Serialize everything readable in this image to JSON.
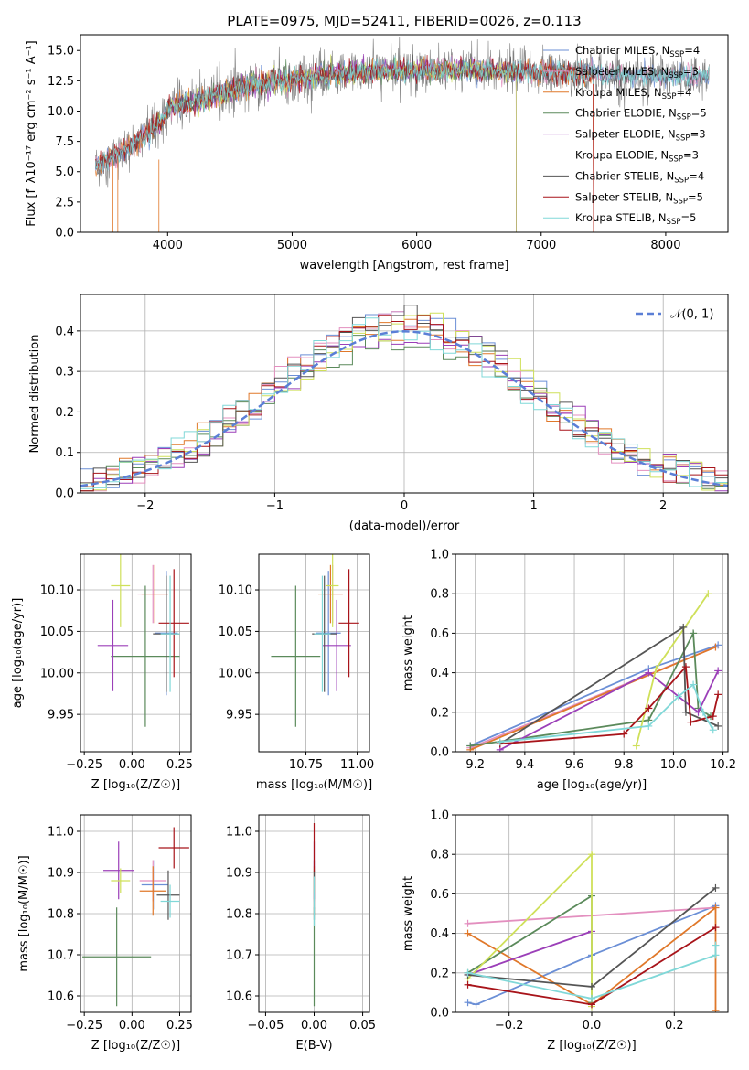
{
  "colors": {
    "Chabrier MILES": "#6b8fd6",
    "Salpeter MILES": "#e38fbf",
    "Kroupa MILES": "#e0782a",
    "Chabrier ELODIE": "#5b8a5b",
    "Salpeter ELODIE": "#9b3fb8",
    "Kroupa ELODIE": "#cfe05a",
    "Chabrier STELIB": "#555555",
    "Salpeter STELIB": "#a8141a",
    "Kroupa STELIB": "#80d8d8"
  },
  "chart_data": [
    {
      "id": "spectrum",
      "type": "line",
      "title": "PLATE=0975, MJD=52411, FIBERID=0026, z=0.113",
      "xlabel": "wavelength [Angstrom, rest frame]",
      "ylabel": "Flux [f_λ10⁻¹⁷ erg cm⁻² s⁻¹ A⁻¹]",
      "xlim": [
        3300,
        8500
      ],
      "ylim": [
        0,
        16.3
      ],
      "xticks": [
        "4000",
        "5000",
        "6000",
        "7000",
        "8000"
      ],
      "yticks": [
        "0.0",
        "2.5",
        "5.0",
        "7.5",
        "10.0",
        "12.5",
        "15.0"
      ],
      "legend_position": "upper-right",
      "series": [
        {
          "name": "Chabrier MILES",
          "nssp": "4"
        },
        {
          "name": "Salpeter MILES",
          "nssp": "3"
        },
        {
          "name": "Kroupa MILES",
          "nssp": "4"
        },
        {
          "name": "Chabrier ELODIE",
          "nssp": "5"
        },
        {
          "name": "Salpeter ELODIE",
          "nssp": "3"
        },
        {
          "name": "Kroupa ELODIE",
          "nssp": "3"
        },
        {
          "name": "Chabrier STELIB",
          "nssp": "4"
        },
        {
          "name": "Salpeter STELIB",
          "nssp": "5"
        },
        {
          "name": "Kroupa STELIB",
          "nssp": "5"
        }
      ],
      "continuum": [
        [
          3420,
          5.5
        ],
        [
          3700,
          7.0
        ],
        [
          3950,
          9.0
        ],
        [
          4000,
          10.3
        ],
        [
          4300,
          11.0
        ],
        [
          4600,
          12.0
        ],
        [
          5000,
          12.6
        ],
        [
          5500,
          13.2
        ],
        [
          6000,
          13.4
        ],
        [
          6500,
          13.4
        ],
        [
          7000,
          13.2
        ],
        [
          7500,
          13.0
        ],
        [
          8000,
          12.9
        ],
        [
          8350,
          12.9
        ]
      ]
    },
    {
      "id": "residuals",
      "type": "histogram",
      "xlabel": "(data-model)/error",
      "ylabel": "Normed distribution",
      "xlim": [
        -2.5,
        2.5
      ],
      "ylim": [
        0,
        0.49
      ],
      "xticks": [
        "−2",
        "−1",
        "0",
        "1",
        "2"
      ],
      "yticks": [
        "0.0",
        "0.1",
        "0.2",
        "0.3",
        "0.4"
      ],
      "legend": "𝒩(0, 1)",
      "legend_position": "upper-right",
      "bin_width": 0.1
    },
    {
      "id": "age_vs_Z",
      "type": "errorbar",
      "xlabel": "Z [log₁₀(Z/Z☉)]",
      "ylabel": "age  [log₁₀(age/yr)]",
      "xlim": [
        -0.27,
        0.31
      ],
      "ylim": [
        9.905,
        10.143
      ],
      "xticks": [
        "−0.25",
        "0.00",
        "0.25"
      ],
      "yticks": [
        "9.95",
        "10.00",
        "10.05",
        "10.10"
      ],
      "points": [
        {
          "series": "Chabrier MILES",
          "x": 0.18,
          "xerr": 0.06,
          "y": 10.048,
          "yerr": 0.075
        },
        {
          "series": "Salpeter MILES",
          "x": 0.11,
          "xerr": 0.08,
          "y": 10.095,
          "yerr": 0.035
        },
        {
          "series": "Kroupa MILES",
          "x": 0.12,
          "xerr": 0.07,
          "y": 10.095,
          "yerr": 0.035
        },
        {
          "series": "Chabrier ELODIE",
          "x": 0.07,
          "xerr": 0.18,
          "y": 10.02,
          "yerr": 0.085
        },
        {
          "series": "Salpeter ELODIE",
          "x": -0.1,
          "xerr": 0.08,
          "y": 10.033,
          "yerr": 0.055
        },
        {
          "series": "Kroupa ELODIE",
          "x": -0.06,
          "xerr": 0.05,
          "y": 10.105,
          "yerr": 0.05
        },
        {
          "series": "Chabrier STELIB",
          "x": 0.18,
          "xerr": 0.07,
          "y": 10.047,
          "yerr": 0.07
        },
        {
          "series": "Salpeter STELIB",
          "x": 0.22,
          "xerr": 0.08,
          "y": 10.06,
          "yerr": 0.065
        },
        {
          "series": "Kroupa STELIB",
          "x": 0.2,
          "xerr": 0.05,
          "y": 10.047,
          "yerr": 0.07
        }
      ]
    },
    {
      "id": "age_vs_mass",
      "type": "errorbar",
      "xlabel": "mass [log₁₀(M/M☉)]",
      "ylabel": "",
      "xlim": [
        10.52,
        11.06
      ],
      "ylim": [
        9.905,
        10.143
      ],
      "xticks": [
        "10.75",
        "11.00"
      ],
      "yticks": [
        "9.95",
        "10.00",
        "10.05",
        "10.10"
      ],
      "points": [
        {
          "series": "Chabrier MILES",
          "x": 10.86,
          "xerr": 0.06,
          "y": 10.048,
          "yerr": 0.075
        },
        {
          "series": "Salpeter MILES",
          "x": 10.88,
          "xerr": 0.05,
          "y": 10.095,
          "yerr": 0.035
        },
        {
          "series": "Kroupa MILES",
          "x": 10.87,
          "xerr": 0.06,
          "y": 10.095,
          "yerr": 0.035
        },
        {
          "series": "Chabrier ELODIE",
          "x": 10.7,
          "xerr": 0.12,
          "y": 10.02,
          "yerr": 0.085
        },
        {
          "series": "Salpeter ELODIE",
          "x": 10.9,
          "xerr": 0.07,
          "y": 10.033,
          "yerr": 0.055
        },
        {
          "series": "Kroupa ELODIE",
          "x": 10.88,
          "xerr": 0.03,
          "y": 10.105,
          "yerr": 0.05
        },
        {
          "series": "Chabrier STELIB",
          "x": 10.84,
          "xerr": 0.06,
          "y": 10.047,
          "yerr": 0.07
        },
        {
          "series": "Salpeter STELIB",
          "x": 10.96,
          "xerr": 0.05,
          "y": 10.06,
          "yerr": 0.065
        },
        {
          "series": "Kroupa STELIB",
          "x": 10.83,
          "xerr": 0.04,
          "y": 10.047,
          "yerr": 0.07
        }
      ]
    },
    {
      "id": "weight_vs_age",
      "type": "line",
      "xlabel": "age  [log₁₀(age/yr)]",
      "ylabel": "mass weight",
      "xlim": [
        9.12,
        10.22
      ],
      "ylim": [
        0,
        1
      ],
      "xticks": [
        "9.2",
        "9.4",
        "9.6",
        "9.8",
        "10.0",
        "10.2"
      ],
      "yticks": [
        "0.0",
        "0.2",
        "0.4",
        "0.6",
        "0.8",
        "1.0"
      ],
      "series": [
        {
          "name": "Chabrier MILES",
          "points": [
            [
              9.18,
              0.03
            ],
            [
              9.9,
              0.42
            ],
            [
              10.18,
              0.54
            ]
          ]
        },
        {
          "name": "Salpeter MILES",
          "points": [
            [
              9.18,
              0.02
            ],
            [
              10.17,
              0.53
            ]
          ]
        },
        {
          "name": "Kroupa MILES",
          "points": [
            [
              9.18,
              0.01
            ],
            [
              10.17,
              0.53
            ]
          ]
        },
        {
          "name": "Chabrier ELODIE",
          "points": [
            [
              9.18,
              0.03
            ],
            [
              9.9,
              0.16
            ],
            [
              10.08,
              0.6
            ],
            [
              10.1,
              0.22
            ],
            [
              10.15,
              0.18
            ]
          ]
        },
        {
          "name": "Salpeter ELODIE",
          "points": [
            [
              9.3,
              0.01
            ],
            [
              9.9,
              0.4
            ],
            [
              10.1,
              0.2
            ],
            [
              10.18,
              0.41
            ]
          ]
        },
        {
          "name": "Kroupa ELODIE",
          "points": [
            [
              9.85,
              0.03
            ],
            [
              9.93,
              0.42
            ],
            [
              10.14,
              0.8
            ]
          ]
        },
        {
          "name": "Chabrier STELIB",
          "points": [
            [
              9.3,
              0.04
            ],
            [
              10.04,
              0.63
            ],
            [
              10.05,
              0.2
            ],
            [
              10.18,
              0.13
            ]
          ]
        },
        {
          "name": "Salpeter STELIB",
          "points": [
            [
              9.3,
              0.04
            ],
            [
              9.8,
              0.09
            ],
            [
              9.9,
              0.22
            ],
            [
              10.05,
              0.43
            ],
            [
              10.07,
              0.15
            ],
            [
              10.16,
              0.18
            ],
            [
              10.18,
              0.29
            ]
          ]
        },
        {
          "name": "Kroupa STELIB",
          "points": [
            [
              9.3,
              0.05
            ],
            [
              9.9,
              0.13
            ],
            [
              10.02,
              0.28
            ],
            [
              10.08,
              0.34
            ],
            [
              10.12,
              0.2
            ],
            [
              10.16,
              0.11
            ]
          ]
        }
      ]
    },
    {
      "id": "mass_vs_Z",
      "type": "errorbar",
      "xlabel": "Z [log₁₀(Z/Z☉)]",
      "ylabel": "mass [log₁₀(M/M☉)]",
      "xlim": [
        -0.27,
        0.31
      ],
      "ylim": [
        10.56,
        11.04
      ],
      "xticks": [
        "−0.25",
        "0.00",
        "0.25"
      ],
      "yticks": [
        "10.6",
        "10.7",
        "10.8",
        "10.9",
        "11.0"
      ],
      "points": [
        {
          "series": "Chabrier MILES",
          "x": 0.12,
          "xerr": 0.07,
          "y": 10.87,
          "yerr": 0.06
        },
        {
          "series": "Salpeter MILES",
          "x": 0.11,
          "xerr": 0.07,
          "y": 10.88,
          "yerr": 0.05
        },
        {
          "series": "Kroupa MILES",
          "x": 0.11,
          "xerr": 0.07,
          "y": 10.855,
          "yerr": 0.06
        },
        {
          "series": "Chabrier ELODIE",
          "x": -0.08,
          "xerr": 0.18,
          "y": 10.695,
          "yerr": 0.12
        },
        {
          "series": "Salpeter ELODIE",
          "x": -0.07,
          "xerr": 0.08,
          "y": 10.905,
          "yerr": 0.07
        },
        {
          "series": "Kroupa ELODIE",
          "x": -0.06,
          "xerr": 0.05,
          "y": 10.88,
          "yerr": 0.03
        },
        {
          "series": "Chabrier STELIB",
          "x": 0.19,
          "xerr": 0.06,
          "y": 10.845,
          "yerr": 0.06
        },
        {
          "series": "Salpeter STELIB",
          "x": 0.22,
          "xerr": 0.08,
          "y": 10.96,
          "yerr": 0.05
        },
        {
          "series": "Kroupa STELIB",
          "x": 0.2,
          "xerr": 0.05,
          "y": 10.83,
          "yerr": 0.04
        }
      ]
    },
    {
      "id": "mass_vs_ebv",
      "type": "errorbar",
      "xlabel": "E(B-V)",
      "ylabel": "",
      "xlim": [
        -0.057,
        0.057
      ],
      "ylim": [
        10.56,
        11.04
      ],
      "xticks": [
        "−0.05",
        "0.00",
        "0.05"
      ],
      "yticks": [
        "10.6",
        "10.7",
        "10.8",
        "10.9",
        "11.0"
      ],
      "points": [
        {
          "series": "Chabrier MILES",
          "x": 0,
          "xerr": 0,
          "y": 10.87,
          "yerr": 0.06
        },
        {
          "series": "Salpeter MILES",
          "x": 0,
          "xerr": 0,
          "y": 10.88,
          "yerr": 0.05
        },
        {
          "series": "Kroupa MILES",
          "x": 0,
          "xerr": 0,
          "y": 10.855,
          "yerr": 0.06
        },
        {
          "series": "Chabrier ELODIE",
          "x": 0,
          "xerr": 0,
          "y": 10.695,
          "yerr": 0.12
        },
        {
          "series": "Salpeter ELODIE",
          "x": 0,
          "xerr": 0,
          "y": 10.905,
          "yerr": 0.07
        },
        {
          "series": "Kroupa ELODIE",
          "x": 0,
          "xerr": 0,
          "y": 10.88,
          "yerr": 0.03
        },
        {
          "series": "Chabrier STELIB",
          "x": 0,
          "xerr": 0,
          "y": 10.845,
          "yerr": 0.06
        },
        {
          "series": "Salpeter STELIB",
          "x": 0,
          "xerr": 0,
          "y": 10.96,
          "yerr": 0.06
        },
        {
          "series": "Kroupa STELIB",
          "x": 0,
          "xerr": 0,
          "y": 10.83,
          "yerr": 0.06
        }
      ]
    },
    {
      "id": "weight_vs_Z",
      "type": "line",
      "xlabel": "Z [log₁₀(Z/Z☉)]",
      "ylabel": "mass weight",
      "xlim": [
        -0.33,
        0.33
      ],
      "ylim": [
        0,
        1
      ],
      "xticks": [
        "−0.2",
        "0.0",
        "0.2"
      ],
      "yticks": [
        "0.0",
        "0.2",
        "0.4",
        "0.6",
        "0.8",
        "1.0"
      ],
      "series": [
        {
          "name": "Chabrier MILES",
          "points": [
            [
              -0.3,
              0.05
            ],
            [
              -0.28,
              0.04
            ],
            [
              0.0,
              0.29
            ],
            [
              0.3,
              0.54
            ]
          ]
        },
        {
          "name": "Salpeter MILES",
          "points": [
            [
              -0.3,
              0.45
            ],
            [
              0.3,
              0.53
            ]
          ]
        },
        {
          "name": "Kroupa MILES",
          "points": [
            [
              -0.3,
              0.4
            ],
            [
              0.0,
              0.04
            ],
            [
              0.3,
              0.53
            ],
            [
              0.3,
              0.01
            ]
          ]
        },
        {
          "name": "Chabrier ELODIE",
          "points": [
            [
              -0.3,
              0.2
            ],
            [
              0.0,
              0.59
            ],
            [
              0.0,
              0.05
            ]
          ]
        },
        {
          "name": "Salpeter ELODIE",
          "points": [
            [
              -0.3,
              0.19
            ],
            [
              0.0,
              0.41
            ]
          ]
        },
        {
          "name": "Kroupa ELODIE",
          "points": [
            [
              -0.3,
              0.17
            ],
            [
              0.0,
              0.8
            ],
            [
              0.0,
              0.03
            ]
          ]
        },
        {
          "name": "Chabrier STELIB",
          "points": [
            [
              -0.3,
              0.19
            ],
            [
              0.0,
              0.13
            ],
            [
              0.3,
              0.63
            ]
          ]
        },
        {
          "name": "Salpeter STELIB",
          "points": [
            [
              -0.3,
              0.14
            ],
            [
              0.0,
              0.04
            ],
            [
              0.3,
              0.43
            ]
          ]
        },
        {
          "name": "Kroupa STELIB",
          "points": [
            [
              -0.3,
              0.2
            ],
            [
              0.0,
              0.07
            ],
            [
              0.3,
              0.29
            ],
            [
              0.3,
              0.34
            ]
          ]
        }
      ]
    }
  ]
}
